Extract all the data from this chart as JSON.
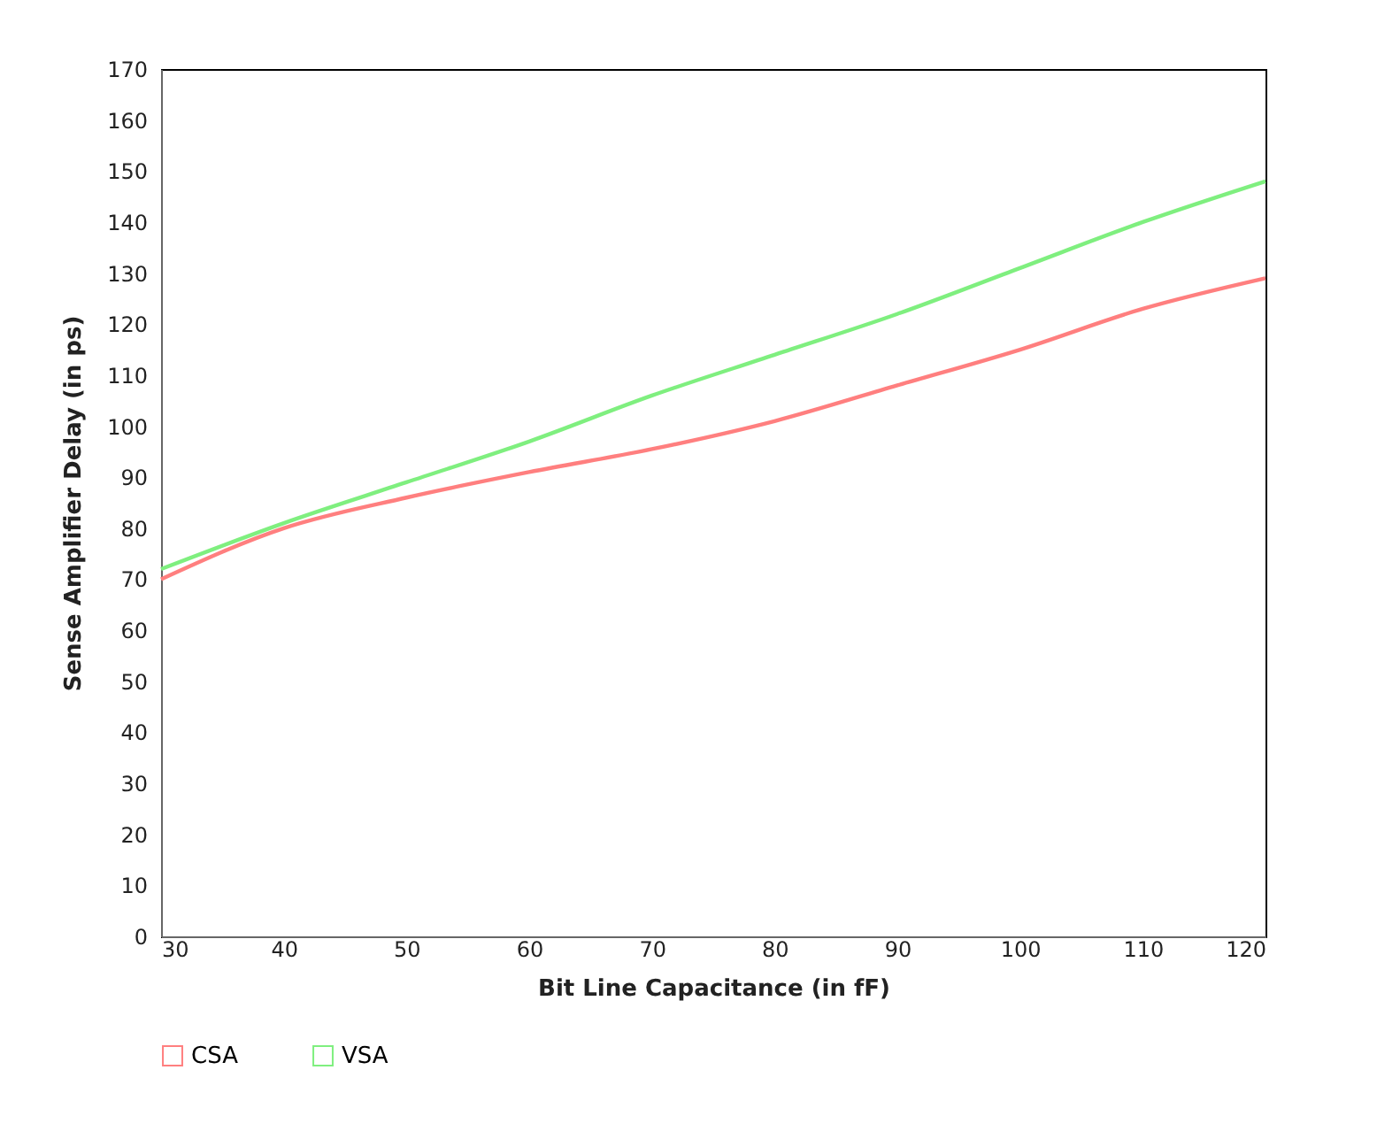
{
  "chart_data": {
    "type": "line",
    "xlabel": "Bit Line Capacitance (in fF)",
    "ylabel": "Sense Amplifier Delay (in ps)",
    "x": [
      30,
      40,
      50,
      60,
      70,
      80,
      90,
      100,
      110,
      120
    ],
    "series": [
      {
        "name": "CSA",
        "color": "#ff7f7f",
        "values": [
          70,
          80,
          86,
          91,
          95.5,
          101,
          108,
          115,
          123,
          129
        ]
      },
      {
        "name": "VSA",
        "color": "#7fef7f",
        "values": [
          72,
          81,
          89,
          97,
          106,
          114,
          122,
          131,
          140,
          148
        ]
      }
    ],
    "xlim": [
      30,
      120
    ],
    "xticks": [
      30,
      40,
      50,
      60,
      70,
      80,
      90,
      100,
      110,
      120
    ],
    "ylim": [
      0,
      170
    ],
    "yticks": [
      0,
      10,
      20,
      30,
      40,
      50,
      60,
      70,
      80,
      90,
      100,
      110,
      120,
      130,
      140,
      150,
      160,
      170
    ],
    "grid": false,
    "legend": "bottom left",
    "marker": "none",
    "line_style": "solid"
  }
}
